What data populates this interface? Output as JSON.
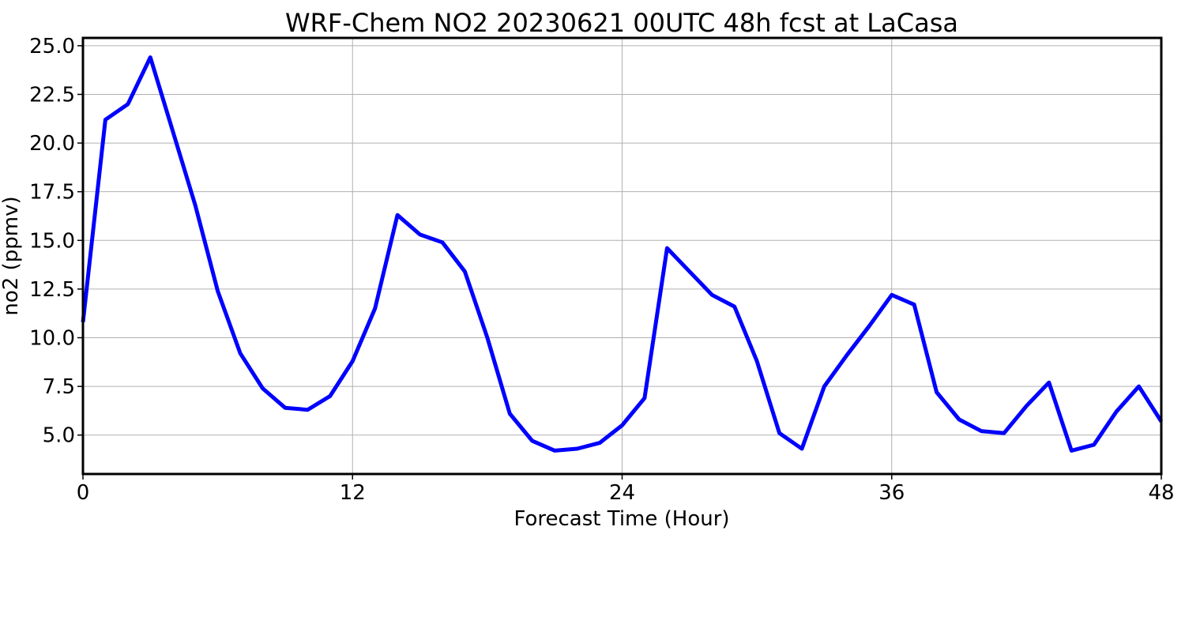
{
  "chart_data": {
    "type": "line",
    "title": "WRF-Chem NO2  20230621 00UTC 48h fcst at LaCasa",
    "xlabel": "Forecast Time (Hour)",
    "ylabel": "no2  (ppmv)",
    "xlim": [
      0,
      48
    ],
    "ylim": [
      3.0,
      25.4
    ],
    "xticks": [
      0,
      12,
      24,
      36,
      48
    ],
    "yticks": [
      5.0,
      7.5,
      10.0,
      12.5,
      15.0,
      17.5,
      20.0,
      22.5,
      25.0
    ],
    "xtick_labels": [
      "0",
      "12",
      "24",
      "36",
      "48"
    ],
    "ytick_labels": [
      "5.0",
      "7.5",
      "10.0",
      "12.5",
      "15.0",
      "17.5",
      "20.0",
      "22.5",
      "25.0"
    ],
    "grid": true,
    "line_color": "#0000ff",
    "x": [
      0,
      1,
      2,
      3,
      4,
      5,
      6,
      7,
      8,
      9,
      10,
      11,
      12,
      13,
      14,
      15,
      16,
      17,
      18,
      19,
      20,
      21,
      22,
      23,
      24,
      25,
      26,
      27,
      28,
      29,
      30,
      31,
      32,
      33,
      34,
      35,
      36,
      37,
      38,
      39,
      40,
      41,
      42,
      43,
      44,
      45,
      46,
      47,
      48
    ],
    "y": [
      10.8,
      21.2,
      22.0,
      24.4,
      20.6,
      16.8,
      12.4,
      9.2,
      7.4,
      6.4,
      6.3,
      7.0,
      8.8,
      11.5,
      16.3,
      15.3,
      14.9,
      13.4,
      10.0,
      6.1,
      4.7,
      4.2,
      4.3,
      4.6,
      5.5,
      6.9,
      14.6,
      13.4,
      12.2,
      11.6,
      8.8,
      5.1,
      4.3,
      7.5,
      9.1,
      10.6,
      12.2,
      11.7,
      7.2,
      5.8,
      5.2,
      5.1,
      6.5,
      7.7,
      4.2,
      4.5,
      6.2,
      7.5,
      5.7
    ]
  }
}
